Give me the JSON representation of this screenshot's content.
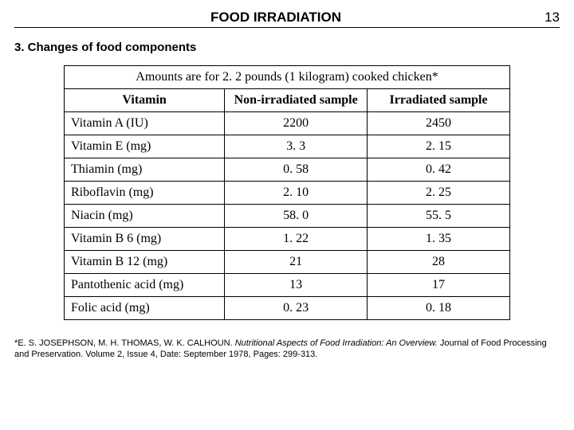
{
  "header": {
    "title": "FOOD IRRADIATION",
    "page_number": "13"
  },
  "section": {
    "title": "3. Changes of food components"
  },
  "table": {
    "caption": "Amounts are for 2. 2 pounds (1 kilogram) cooked chicken*",
    "columns": [
      "Vitamin",
      "Non-irradiated sample",
      "Irradiated sample"
    ],
    "rows": [
      [
        "Vitamin A (IU)",
        "2200",
        "2450"
      ],
      [
        "Vitamin E (mg)",
        "3. 3",
        "2. 15"
      ],
      [
        "Thiamin (mg)",
        "0. 58",
        "0. 42"
      ],
      [
        "Riboflavin (mg)",
        "2. 10",
        "2. 25"
      ],
      [
        "Niacin (mg)",
        "58. 0",
        "55. 5"
      ],
      [
        "Vitamin B 6 (mg)",
        "1. 22",
        "1. 35"
      ],
      [
        "Vitamin B 12 (mg)",
        "21",
        "28"
      ],
      [
        "Pantothenic acid (mg)",
        "13",
        "17"
      ],
      [
        "Folic acid (mg)",
        "0. 23",
        "0. 18"
      ]
    ]
  },
  "footnote": {
    "authors": "*E. S. JOSEPHSON, M. H. THOMAS, W. K. CALHOUN. ",
    "title_italic": "Nutritional Aspects of Food Irradiation: An Overview.",
    "rest": " Journal of Food Processing and Preservation. Volume 2, Issue 4, Date: September 1978, Pages: 299-313."
  }
}
